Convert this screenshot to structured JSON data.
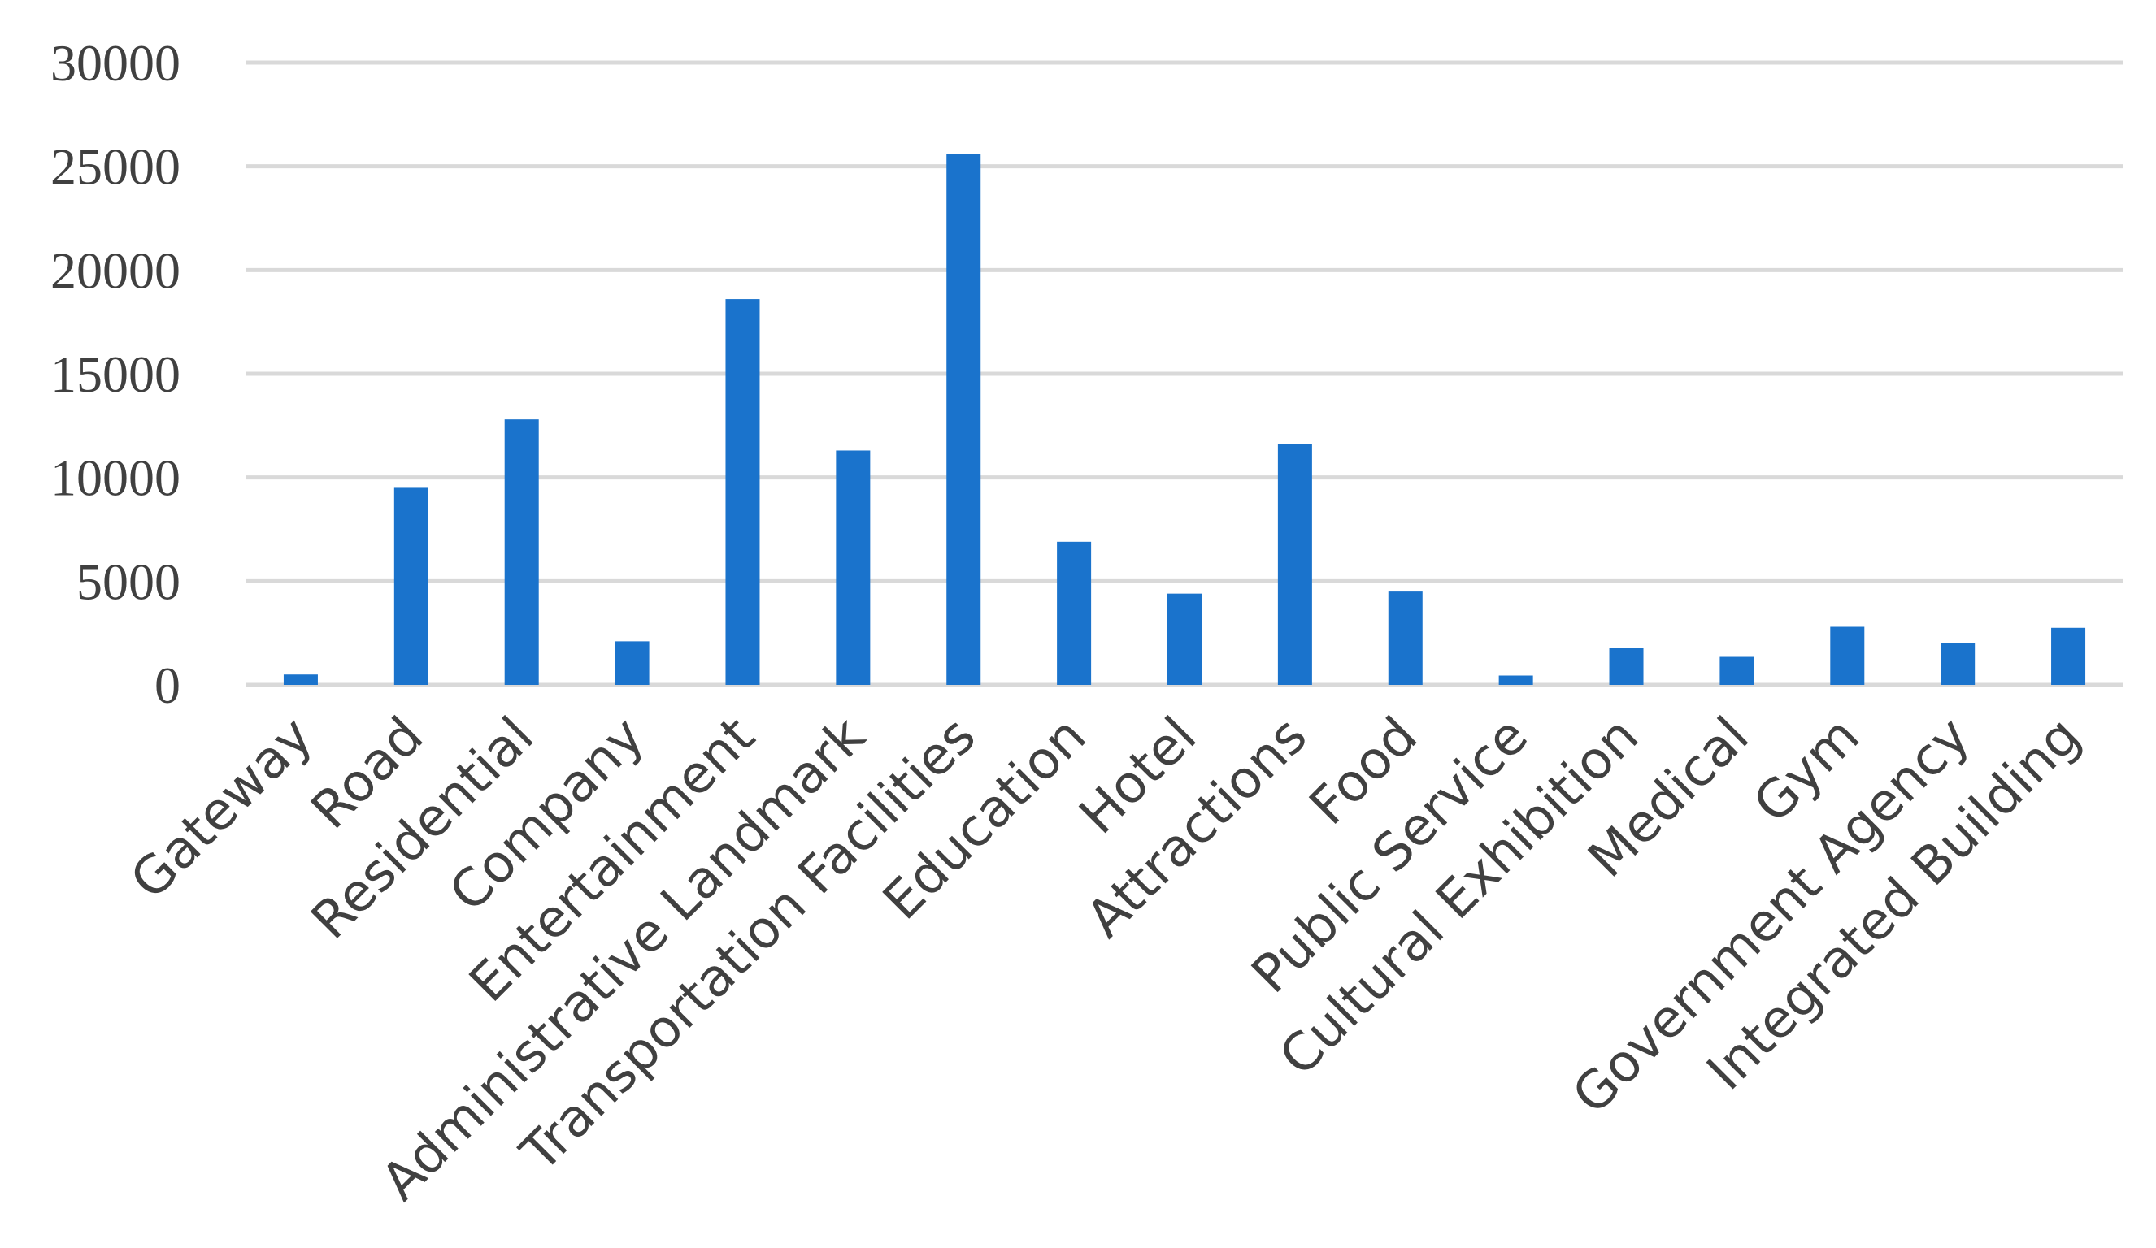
{
  "chart_data": {
    "type": "bar",
    "categories": [
      "Gateway",
      "Road",
      "Residential",
      "Company",
      "Entertainment",
      "Administrative Landmark",
      "Transportation Facilities",
      "Education",
      "Hotel",
      "Attractions",
      "Food",
      "Public Service",
      "Cultural Exhibition",
      "Medical",
      "Gym",
      "Government Agency",
      "Integrated Building"
    ],
    "values": [
      500,
      9500,
      12800,
      2100,
      18600,
      11300,
      25600,
      6900,
      4400,
      11600,
      4500,
      450,
      1800,
      1350,
      2800,
      2000,
      2750
    ],
    "yticks": [
      "0",
      "5000",
      "10000",
      "15000",
      "20000",
      "25000",
      "30000"
    ],
    "ylim": [
      0,
      30000
    ],
    "grid": true,
    "legend": "none",
    "bar_color": "#1a73cc"
  }
}
